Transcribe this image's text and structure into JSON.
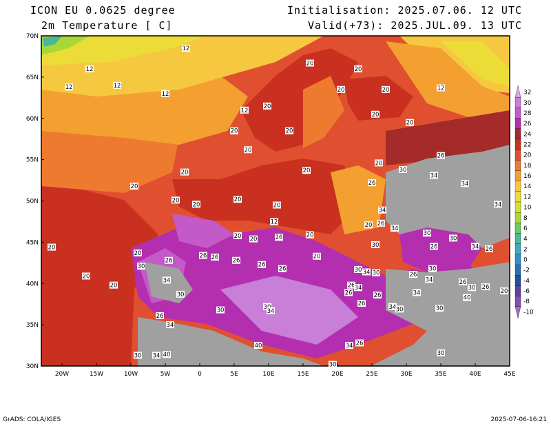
{
  "header": {
    "model": "ICON EU 0.0625 degree",
    "variable": "2m Temperature [ C]",
    "init": "Initialisation: 2025.07.06. 12 UTC",
    "valid": "Valid(+73): 2025.JUL.09. 13 UTC"
  },
  "footer": {
    "left": "GrADS: COLA/IGES",
    "right": "2025-07-06-16:21"
  },
  "axes": {
    "lat_labels": [
      "70N",
      "65N",
      "60N",
      "55N",
      "50N",
      "45N",
      "40N",
      "35N",
      "30N"
    ],
    "lon_labels": [
      "20W",
      "15W",
      "10W",
      "5W",
      "0",
      "5E",
      "10E",
      "15E",
      "20E",
      "25E",
      "30E",
      "35E",
      "40E",
      "45E"
    ]
  },
  "legend": {
    "labels": [
      "32",
      "30",
      "28",
      "26",
      "24",
      "22",
      "20",
      "18",
      "16",
      "14",
      "12",
      "10",
      "8",
      "6",
      "4",
      "2",
      "0",
      "-2",
      "-4",
      "-6",
      "-8",
      "-10"
    ],
    "colors": [
      "#d9a8e0",
      "#c97ed8",
      "#c45ac8",
      "#b32fb0",
      "#a52a2a",
      "#c93020",
      "#e05030",
      "#ee7a30",
      "#f3a030",
      "#f6c840",
      "#ecdc38",
      "#d4e030",
      "#a8d838",
      "#70c860",
      "#48b898",
      "#40a8c0",
      "#3090c8",
      "#2870b8",
      "#2050a0",
      "#6040a0",
      "#8050b0",
      "#a070c0"
    ],
    "background": "#a0a0a0"
  },
  "labels": [
    {
      "t": "12",
      "lon": -2,
      "lat": 68.5
    },
    {
      "t": "20",
      "lon": 16,
      "lat": 66.7
    },
    {
      "t": "20",
      "lon": 23,
      "lat": 66
    },
    {
      "t": "12",
      "lon": -16,
      "lat": 66
    },
    {
      "t": "12",
      "lon": -19,
      "lat": 63.8
    },
    {
      "t": "12",
      "lon": -12,
      "lat": 64
    },
    {
      "t": "12",
      "lon": -5,
      "lat": 63
    },
    {
      "t": "20",
      "lon": 20.5,
      "lat": 63.5
    },
    {
      "t": "20",
      "lon": 27,
      "lat": 63.5
    },
    {
      "t": "12",
      "lon": 35,
      "lat": 63.7
    },
    {
      "t": "12",
      "lon": 6.5,
      "lat": 61
    },
    {
      "t": "20",
      "lon": 9.8,
      "lat": 61.5
    },
    {
      "t": "20",
      "lon": 25.5,
      "lat": 60.5
    },
    {
      "t": "20",
      "lon": 30.5,
      "lat": 59.5
    },
    {
      "t": "20",
      "lon": 5,
      "lat": 58.5
    },
    {
      "t": "20",
      "lon": 13,
      "lat": 58.5
    },
    {
      "t": "20",
      "lon": 7,
      "lat": 56.2
    },
    {
      "t": "26",
      "lon": 35,
      "lat": 55.5
    },
    {
      "t": "20",
      "lon": -2.2,
      "lat": 53.5
    },
    {
      "t": "20",
      "lon": 15.5,
      "lat": 53.7
    },
    {
      "t": "20",
      "lon": 26,
      "lat": 54.6
    },
    {
      "t": "30",
      "lon": 29.5,
      "lat": 53.8
    },
    {
      "t": "34",
      "lon": 34,
      "lat": 53.1
    },
    {
      "t": "20",
      "lon": -9.5,
      "lat": 51.8
    },
    {
      "t": "26",
      "lon": 25,
      "lat": 52.2
    },
    {
      "t": "34",
      "lon": 38.5,
      "lat": 52.1
    },
    {
      "t": "20",
      "lon": -3.5,
      "lat": 50.1
    },
    {
      "t": "20",
      "lon": 5.5,
      "lat": 50.2
    },
    {
      "t": "20",
      "lon": -0.5,
      "lat": 49.6
    },
    {
      "t": "20",
      "lon": 11.2,
      "lat": 49.5
    },
    {
      "t": "34",
      "lon": 26.5,
      "lat": 48.9
    },
    {
      "t": "34",
      "lon": 43.3,
      "lat": 49.6
    },
    {
      "t": "12",
      "lon": 10.8,
      "lat": 47.5
    },
    {
      "t": "20",
      "lon": 24.5,
      "lat": 47.1
    },
    {
      "t": "26",
      "lon": 26.3,
      "lat": 47.3
    },
    {
      "t": "34",
      "lon": 28.3,
      "lat": 46.7
    },
    {
      "t": "30",
      "lon": 33,
      "lat": 46.1
    },
    {
      "t": "20",
      "lon": 5.5,
      "lat": 45.8
    },
    {
      "t": "20",
      "lon": 7.8,
      "lat": 45.4
    },
    {
      "t": "26",
      "lon": 11.5,
      "lat": 45.6
    },
    {
      "t": "20",
      "lon": 16,
      "lat": 45.9
    },
    {
      "t": "30",
      "lon": 25.5,
      "lat": 44.7
    },
    {
      "t": "30",
      "lon": 36.8,
      "lat": 45.5
    },
    {
      "t": "26",
      "lon": 34,
      "lat": 44.5
    },
    {
      "t": "34",
      "lon": 40,
      "lat": 44.5
    },
    {
      "t": "26",
      "lon": 42,
      "lat": 44.2
    },
    {
      "t": "20",
      "lon": -21.5,
      "lat": 44.4
    },
    {
      "t": "20",
      "lon": -9,
      "lat": 43.7
    },
    {
      "t": "26",
      "lon": 0.5,
      "lat": 43.4
    },
    {
      "t": "26",
      "lon": 2.2,
      "lat": 43.2
    },
    {
      "t": "20",
      "lon": 17,
      "lat": 43.3
    },
    {
      "t": "26",
      "lon": -4.5,
      "lat": 42.8
    },
    {
      "t": "26",
      "lon": 5.3,
      "lat": 42.8
    },
    {
      "t": "26",
      "lon": 9,
      "lat": 42.3
    },
    {
      "t": "26",
      "lon": 12,
      "lat": 41.8
    },
    {
      "t": "30",
      "lon": -8.5,
      "lat": 42.1
    },
    {
      "t": "30",
      "lon": 33.8,
      "lat": 41.8
    },
    {
      "t": "30",
      "lon": 23,
      "lat": 41.7
    },
    {
      "t": "34",
      "lon": 24.2,
      "lat": 41.4
    },
    {
      "t": "30",
      "lon": 25.6,
      "lat": 41.3
    },
    {
      "t": "26",
      "lon": 31,
      "lat": 41.1
    },
    {
      "t": "34",
      "lon": 33.3,
      "lat": 40.5
    },
    {
      "t": "26",
      "lon": 38.2,
      "lat": 40.2
    },
    {
      "t": "20",
      "lon": -16.5,
      "lat": 40.9
    },
    {
      "t": "20",
      "lon": -12.5,
      "lat": 39.8
    },
    {
      "t": "34",
      "lon": -4.8,
      "lat": 40.4
    },
    {
      "t": "26",
      "lon": 22,
      "lat": 39.8
    },
    {
      "t": "34",
      "lon": 23,
      "lat": 39.5
    },
    {
      "t": "30",
      "lon": 39.5,
      "lat": 39.5
    },
    {
      "t": "26",
      "lon": 41.5,
      "lat": 39.6
    },
    {
      "t": "20",
      "lon": 44.2,
      "lat": 39.1
    },
    {
      "t": "26",
      "lon": 21.6,
      "lat": 38.9
    },
    {
      "t": "26",
      "lon": 25.8,
      "lat": 38.6
    },
    {
      "t": "30",
      "lon": -2.8,
      "lat": 38.7
    },
    {
      "t": "34",
      "lon": 31.5,
      "lat": 38.9
    },
    {
      "t": "40",
      "lon": 38.8,
      "lat": 38.3
    },
    {
      "t": "26",
      "lon": 23.5,
      "lat": 37.6
    },
    {
      "t": "34",
      "lon": 28,
      "lat": 37.2
    },
    {
      "t": "30",
      "lon": 29,
      "lat": 36.9
    },
    {
      "t": "30",
      "lon": 9.8,
      "lat": 37.2
    },
    {
      "t": "34",
      "lon": 10.3,
      "lat": 36.7
    },
    {
      "t": "30",
      "lon": 3,
      "lat": 36.8
    },
    {
      "t": "30",
      "lon": 34.8,
      "lat": 37
    },
    {
      "t": "26",
      "lon": -5.8,
      "lat": 36.1
    },
    {
      "t": "34",
      "lon": -4.3,
      "lat": 35
    },
    {
      "t": "40",
      "lon": 8.5,
      "lat": 32.5
    },
    {
      "t": "34",
      "lon": 21.7,
      "lat": 32.5
    },
    {
      "t": "26",
      "lon": 23.2,
      "lat": 32.8
    },
    {
      "t": "30",
      "lon": 35,
      "lat": 31.6
    },
    {
      "t": "30",
      "lon": -9,
      "lat": 31.3
    },
    {
      "t": "34",
      "lon": -6.3,
      "lat": 31.3
    },
    {
      "t": "40",
      "lon": -4.8,
      "lat": 31.4
    },
    {
      "t": "30",
      "lon": 19.3,
      "lat": 30.2
    }
  ]
}
